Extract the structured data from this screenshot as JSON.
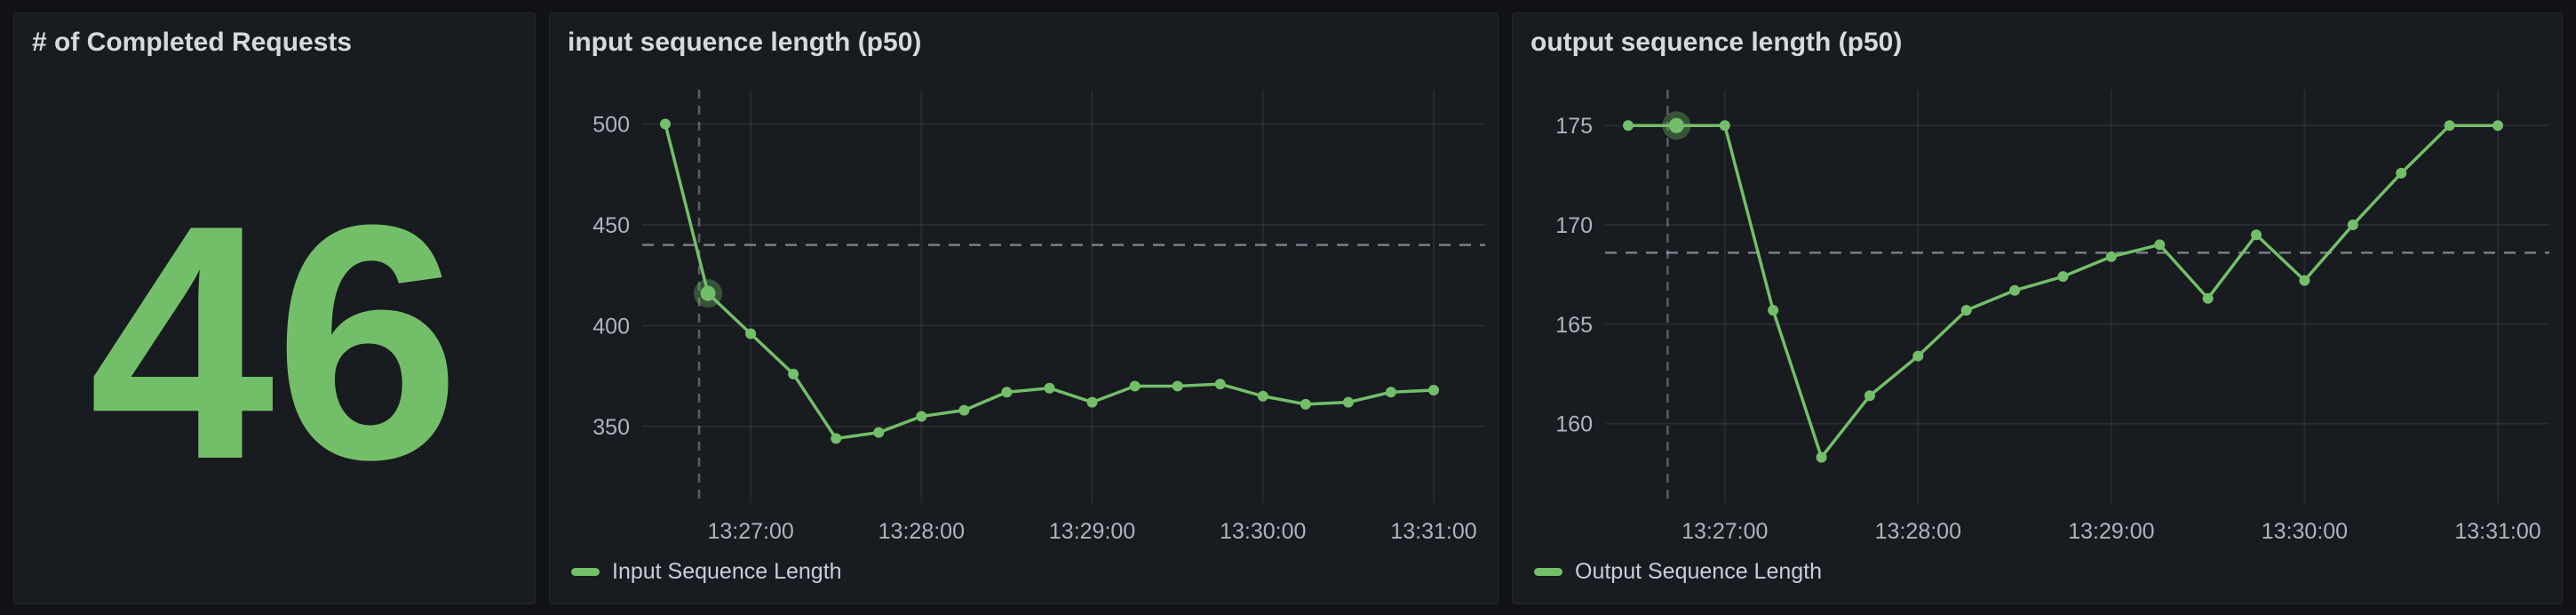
{
  "theme": {
    "page_bg": "#111217",
    "panel_bg": "#181b1f",
    "panel_border": "#25272e",
    "title_color": "#d8d9da",
    "text_color": "#ccccdc",
    "grid_color": "rgba(204,204,220,0.09)",
    "crosshair_color": "rgba(204,204,220,0.38)",
    "threshold_color": "rgba(204,204,220,0.55)",
    "accent_green": "#73BF69"
  },
  "panels": {
    "stat": {
      "title": "# of Completed Requests",
      "value": "46"
    },
    "input": {
      "title": "input sequence length (p50)",
      "legend": "Input Sequence Length"
    },
    "output": {
      "title": "output sequence length (p50)",
      "legend": "Output Sequence Length"
    }
  },
  "chart_data": [
    {
      "type": "stat",
      "title": "# of Completed Requests",
      "value": 46,
      "color": "#73BF69"
    },
    {
      "type": "line",
      "title": "input sequence length (p50)",
      "x": [
        "13:26:30",
        "13:26:45",
        "13:27:00",
        "13:27:15",
        "13:27:30",
        "13:27:45",
        "13:28:00",
        "13:28:15",
        "13:28:30",
        "13:28:45",
        "13:29:00",
        "13:29:15",
        "13:29:30",
        "13:29:45",
        "13:30:00",
        "13:30:15",
        "13:30:30",
        "13:30:45",
        "13:31:00"
      ],
      "series": [
        {
          "name": "Input Sequence Length",
          "values": [
            500,
            416,
            396,
            376,
            344,
            347,
            355,
            358,
            367,
            369,
            362,
            370,
            370,
            371,
            365,
            361,
            362,
            367,
            368
          ]
        }
      ],
      "x_tick_labels": [
        "13:27:00",
        "13:28:00",
        "13:29:00",
        "13:30:00",
        "13:31:00"
      ],
      "x_tick_indices": [
        2,
        6,
        10,
        14,
        18
      ],
      "y_ticks": [
        350,
        400,
        450,
        500
      ],
      "ylim": [
        312,
        517
      ],
      "threshold_y": 440,
      "crosshair_index": 1,
      "crosshair_dx": -10,
      "color": "#73BF69",
      "grid": true,
      "legend_position": "bottom",
      "xlabel": "",
      "ylabel": ""
    },
    {
      "type": "line",
      "title": "output sequence length (p50)",
      "x": [
        "13:26:30",
        "13:26:45",
        "13:27:00",
        "13:27:15",
        "13:27:30",
        "13:27:45",
        "13:28:00",
        "13:28:15",
        "13:28:30",
        "13:28:45",
        "13:29:00",
        "13:29:15",
        "13:29:30",
        "13:29:45",
        "13:30:00",
        "13:30:15",
        "13:30:30",
        "13:30:45",
        "13:31:00"
      ],
      "series": [
        {
          "name": "Output Sequence Length",
          "values": [
            175,
            175,
            175,
            165.7,
            158.3,
            161.4,
            163.4,
            165.7,
            166.7,
            167.4,
            168.4,
            169,
            166.3,
            169.5,
            167.2,
            170,
            172.6,
            175,
            175
          ]
        }
      ],
      "x_tick_labels": [
        "13:27:00",
        "13:28:00",
        "13:29:00",
        "13:30:00",
        "13:31:00"
      ],
      "x_tick_indices": [
        2,
        6,
        10,
        14,
        18
      ],
      "y_ticks": [
        160,
        165,
        170,
        175
      ],
      "ylim": [
        156,
        176.8
      ],
      "threshold_y": 168.6,
      "crosshair_index": 1,
      "crosshair_dx": -10,
      "color": "#73BF69",
      "grid": true,
      "legend_position": "bottom",
      "xlabel": "",
      "ylabel": ""
    }
  ]
}
